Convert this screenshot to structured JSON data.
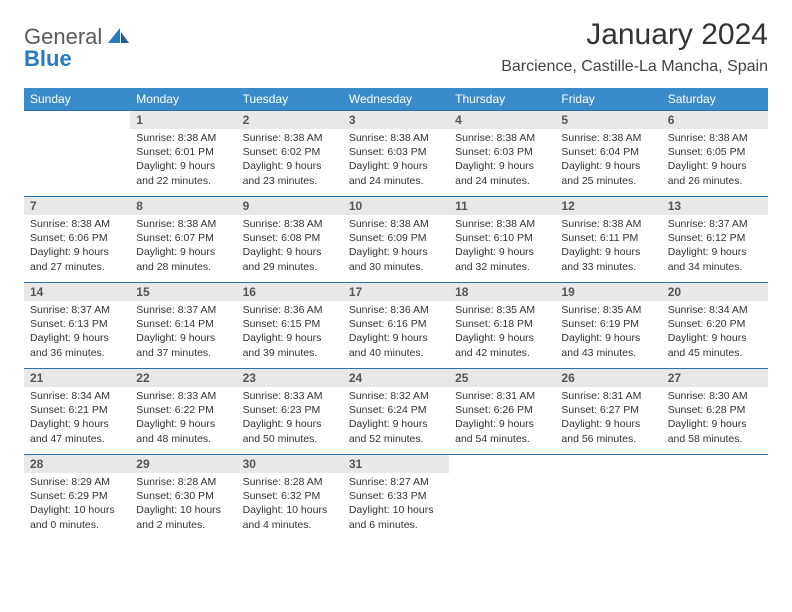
{
  "logo": {
    "text1": "General",
    "text2": "Blue"
  },
  "title": "January 2024",
  "location": "Barcience, Castille-La Mancha, Spain",
  "weekdays": [
    "Sunday",
    "Monday",
    "Tuesday",
    "Wednesday",
    "Thursday",
    "Friday",
    "Saturday"
  ],
  "colors": {
    "header_bg": "#3a8bc9",
    "header_fg": "#ffffff",
    "daynum_bg": "#e8e8e8",
    "row_border": "#2a6fa8",
    "logo_gray": "#5a5a5a",
    "logo_blue": "#2a7ac0"
  },
  "grid": [
    [
      {
        "n": "",
        "sr": "",
        "ss": "",
        "dl": ""
      },
      {
        "n": "1",
        "sr": "8:38 AM",
        "ss": "6:01 PM",
        "dl": "9 hours and 22 minutes."
      },
      {
        "n": "2",
        "sr": "8:38 AM",
        "ss": "6:02 PM",
        "dl": "9 hours and 23 minutes."
      },
      {
        "n": "3",
        "sr": "8:38 AM",
        "ss": "6:03 PM",
        "dl": "9 hours and 24 minutes."
      },
      {
        "n": "4",
        "sr": "8:38 AM",
        "ss": "6:03 PM",
        "dl": "9 hours and 24 minutes."
      },
      {
        "n": "5",
        "sr": "8:38 AM",
        "ss": "6:04 PM",
        "dl": "9 hours and 25 minutes."
      },
      {
        "n": "6",
        "sr": "8:38 AM",
        "ss": "6:05 PM",
        "dl": "9 hours and 26 minutes."
      }
    ],
    [
      {
        "n": "7",
        "sr": "8:38 AM",
        "ss": "6:06 PM",
        "dl": "9 hours and 27 minutes."
      },
      {
        "n": "8",
        "sr": "8:38 AM",
        "ss": "6:07 PM",
        "dl": "9 hours and 28 minutes."
      },
      {
        "n": "9",
        "sr": "8:38 AM",
        "ss": "6:08 PM",
        "dl": "9 hours and 29 minutes."
      },
      {
        "n": "10",
        "sr": "8:38 AM",
        "ss": "6:09 PM",
        "dl": "9 hours and 30 minutes."
      },
      {
        "n": "11",
        "sr": "8:38 AM",
        "ss": "6:10 PM",
        "dl": "9 hours and 32 minutes."
      },
      {
        "n": "12",
        "sr": "8:38 AM",
        "ss": "6:11 PM",
        "dl": "9 hours and 33 minutes."
      },
      {
        "n": "13",
        "sr": "8:37 AM",
        "ss": "6:12 PM",
        "dl": "9 hours and 34 minutes."
      }
    ],
    [
      {
        "n": "14",
        "sr": "8:37 AM",
        "ss": "6:13 PM",
        "dl": "9 hours and 36 minutes."
      },
      {
        "n": "15",
        "sr": "8:37 AM",
        "ss": "6:14 PM",
        "dl": "9 hours and 37 minutes."
      },
      {
        "n": "16",
        "sr": "8:36 AM",
        "ss": "6:15 PM",
        "dl": "9 hours and 39 minutes."
      },
      {
        "n": "17",
        "sr": "8:36 AM",
        "ss": "6:16 PM",
        "dl": "9 hours and 40 minutes."
      },
      {
        "n": "18",
        "sr": "8:35 AM",
        "ss": "6:18 PM",
        "dl": "9 hours and 42 minutes."
      },
      {
        "n": "19",
        "sr": "8:35 AM",
        "ss": "6:19 PM",
        "dl": "9 hours and 43 minutes."
      },
      {
        "n": "20",
        "sr": "8:34 AM",
        "ss": "6:20 PM",
        "dl": "9 hours and 45 minutes."
      }
    ],
    [
      {
        "n": "21",
        "sr": "8:34 AM",
        "ss": "6:21 PM",
        "dl": "9 hours and 47 minutes."
      },
      {
        "n": "22",
        "sr": "8:33 AM",
        "ss": "6:22 PM",
        "dl": "9 hours and 48 minutes."
      },
      {
        "n": "23",
        "sr": "8:33 AM",
        "ss": "6:23 PM",
        "dl": "9 hours and 50 minutes."
      },
      {
        "n": "24",
        "sr": "8:32 AM",
        "ss": "6:24 PM",
        "dl": "9 hours and 52 minutes."
      },
      {
        "n": "25",
        "sr": "8:31 AM",
        "ss": "6:26 PM",
        "dl": "9 hours and 54 minutes."
      },
      {
        "n": "26",
        "sr": "8:31 AM",
        "ss": "6:27 PM",
        "dl": "9 hours and 56 minutes."
      },
      {
        "n": "27",
        "sr": "8:30 AM",
        "ss": "6:28 PM",
        "dl": "9 hours and 58 minutes."
      }
    ],
    [
      {
        "n": "28",
        "sr": "8:29 AM",
        "ss": "6:29 PM",
        "dl": "10 hours and 0 minutes."
      },
      {
        "n": "29",
        "sr": "8:28 AM",
        "ss": "6:30 PM",
        "dl": "10 hours and 2 minutes."
      },
      {
        "n": "30",
        "sr": "8:28 AM",
        "ss": "6:32 PM",
        "dl": "10 hours and 4 minutes."
      },
      {
        "n": "31",
        "sr": "8:27 AM",
        "ss": "6:33 PM",
        "dl": "10 hours and 6 minutes."
      },
      {
        "n": "",
        "sr": "",
        "ss": "",
        "dl": ""
      },
      {
        "n": "",
        "sr": "",
        "ss": "",
        "dl": ""
      },
      {
        "n": "",
        "sr": "",
        "ss": "",
        "dl": ""
      }
    ]
  ],
  "labels": {
    "sunrise": "Sunrise: ",
    "sunset": "Sunset: ",
    "daylight": "Daylight: "
  }
}
